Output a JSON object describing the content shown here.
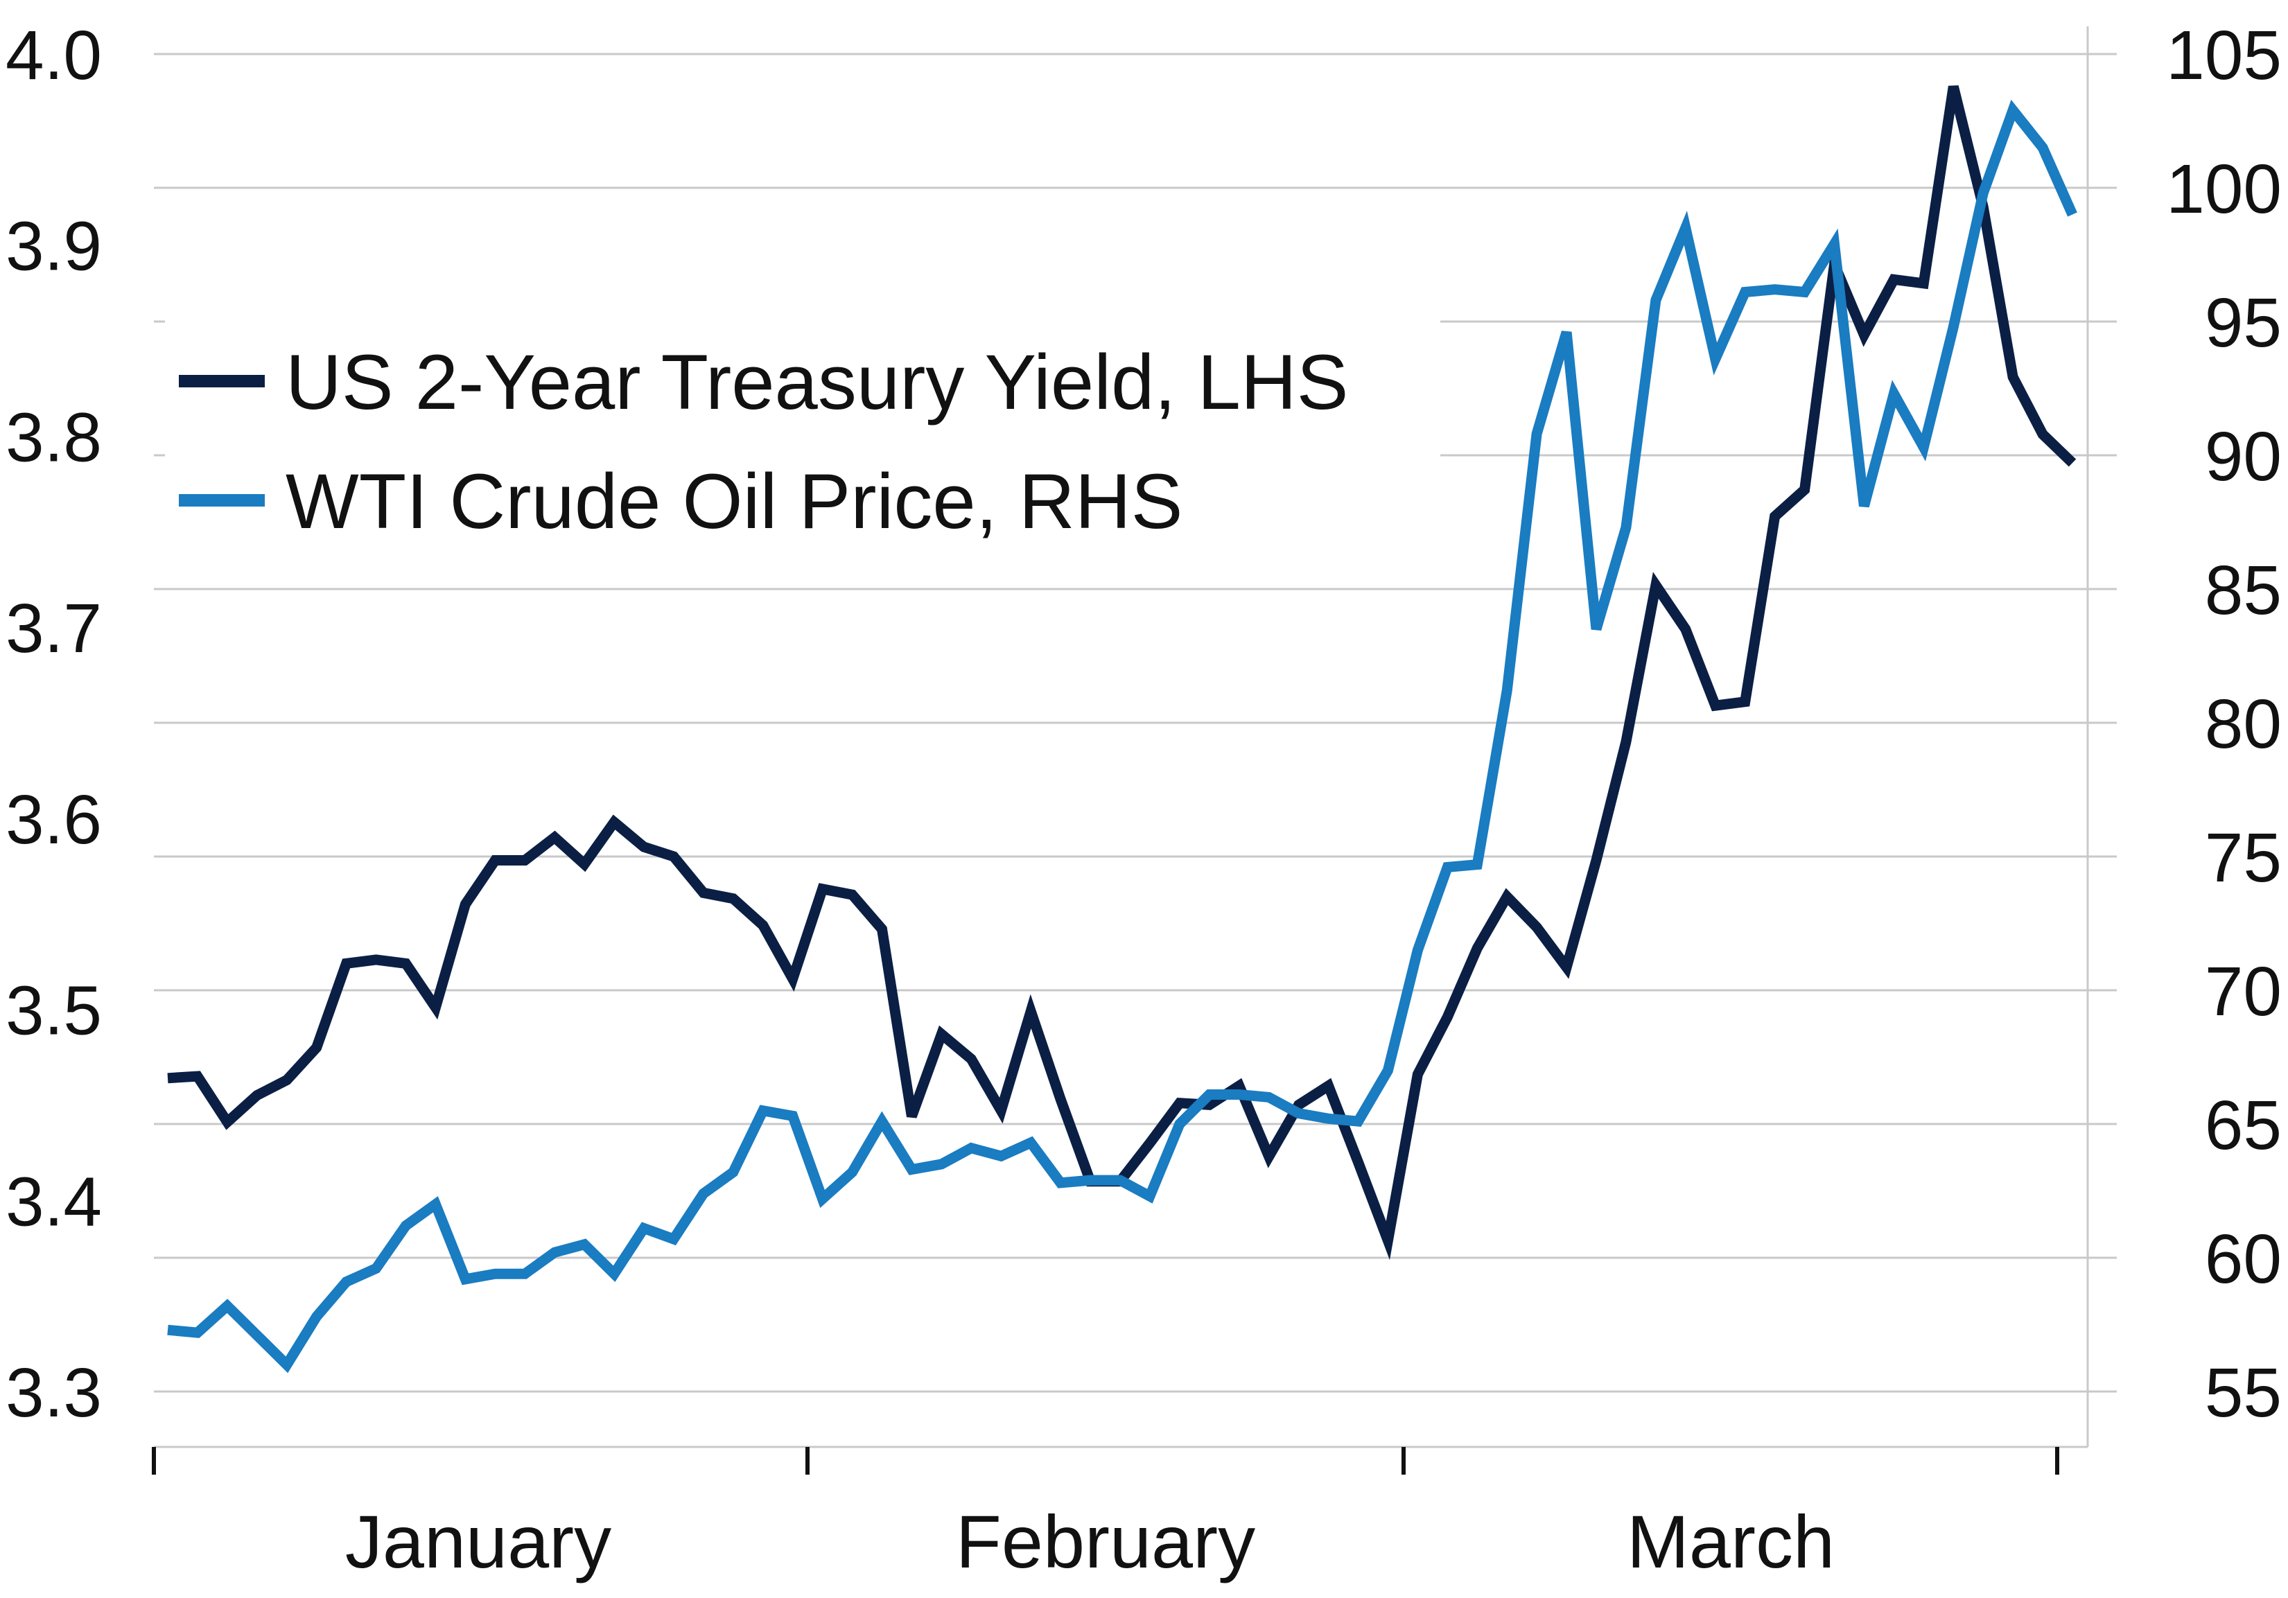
{
  "chart_data": {
    "type": "line",
    "title": "",
    "xlabel": "",
    "x_tick_labels": [
      "January",
      "February",
      "March"
    ],
    "legend_position": "upper-left",
    "grid": true,
    "y_left": {
      "range": [
        3.3,
        4.0
      ],
      "ticks": [
        "3.3",
        "3.4",
        "3.5",
        "3.6",
        "3.7",
        "3.8",
        "3.9",
        "4.0"
      ]
    },
    "y_right": {
      "range": [
        55,
        105
      ],
      "ticks": [
        "55",
        "60",
        "65",
        "70",
        "75",
        "80",
        "85",
        "90",
        "95",
        "100",
        "105"
      ]
    },
    "series": [
      {
        "name": "US 2-Year Treasury Yield, LHS",
        "axis": "left",
        "color": "#0b1f45",
        "values": [
          3.464,
          3.465,
          3.441,
          3.455,
          3.463,
          3.48,
          3.524,
          3.526,
          3.524,
          3.501,
          3.555,
          3.578,
          3.578,
          3.59,
          3.576,
          3.598,
          3.585,
          3.58,
          3.561,
          3.558,
          3.544,
          3.516,
          3.563,
          3.56,
          3.542,
          3.444,
          3.487,
          3.474,
          3.447,
          3.499,
          3.453,
          3.41,
          3.41,
          3.43,
          3.451,
          3.45,
          3.46,
          3.423,
          3.45,
          3.46,
          3.42,
          3.379,
          3.466,
          3.496,
          3.532,
          3.559,
          3.543,
          3.522,
          3.578,
          3.64,
          3.722,
          3.699,
          3.659,
          3.661,
          3.758,
          3.772,
          3.89,
          3.853,
          3.882,
          3.88,
          3.983,
          3.92,
          3.831,
          3.801,
          3.786
        ]
      },
      {
        "name": "WTI Crude Oil Price, RHS",
        "axis": "right",
        "color": "#1a7cc1",
        "values": [
          57.3,
          57.2,
          58.2,
          57.1,
          56.0,
          57.8,
          59.1,
          59.6,
          61.2,
          62.0,
          59.2,
          59.4,
          59.4,
          60.2,
          60.5,
          59.4,
          61.1,
          60.7,
          62.4,
          63.2,
          65.5,
          65.3,
          62.2,
          63.2,
          65.1,
          63.3,
          63.5,
          64.1,
          63.8,
          64.3,
          62.8,
          62.9,
          62.9,
          62.3,
          65.0,
          66.1,
          66.1,
          66.0,
          65.4,
          65.2,
          65.1,
          67.0,
          71.5,
          74.6,
          74.7,
          81.2,
          90.8,
          94.6,
          83.5,
          87.3,
          95.8,
          98.5,
          93.6,
          96.1,
          96.2,
          96.1,
          97.9,
          88.1,
          92.3,
          90.3,
          94.8,
          99.8,
          102.9,
          101.5,
          99.0
        ]
      }
    ]
  }
}
